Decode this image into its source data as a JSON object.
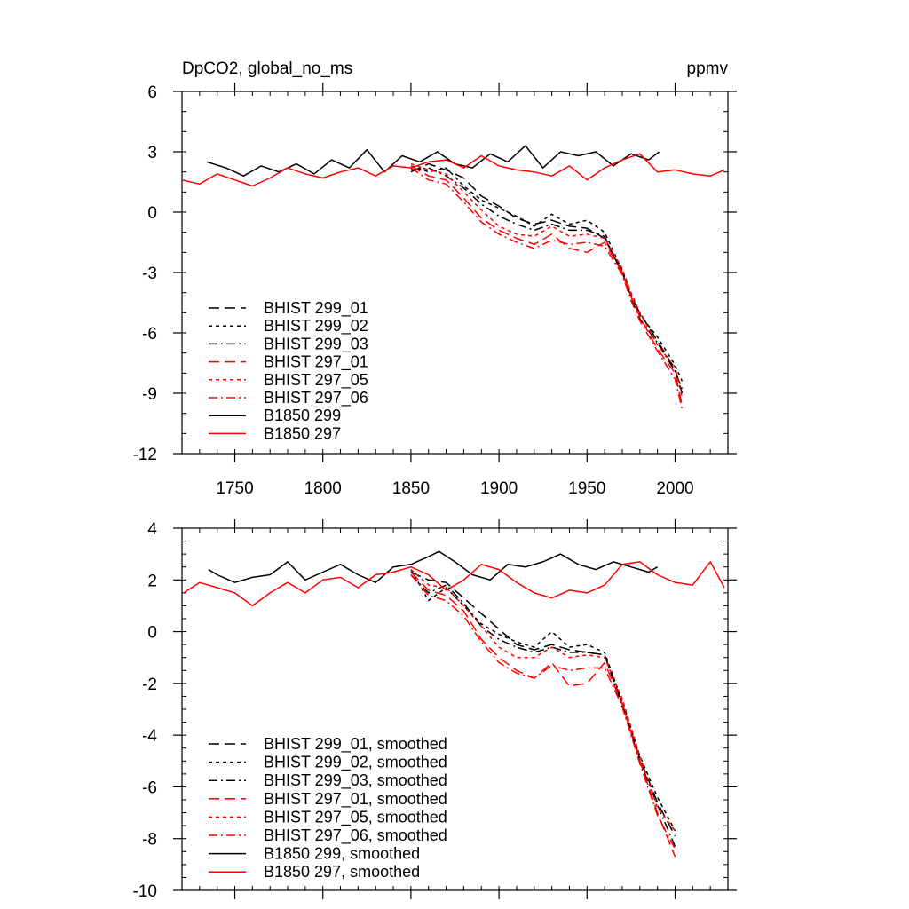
{
  "charts": [
    {
      "id": "top",
      "type": "line",
      "title_left": "DpCO2, global_no_ms",
      "title_right": "ppmv",
      "xlim": [
        1720,
        2030
      ],
      "ylim": [
        -12,
        6
      ],
      "x_ticks": [
        1750,
        1800,
        1850,
        1900,
        1950,
        2000
      ],
      "x_tick_labels": [
        "1750",
        "1800",
        "1850",
        "1900",
        "1950",
        "2000"
      ],
      "y_ticks": [
        6,
        3,
        0,
        -3,
        -6,
        -9,
        -12
      ],
      "y_tick_labels": [
        "6",
        "3",
        "0",
        "-3",
        "-6",
        "-9",
        "-12"
      ],
      "legend": [
        {
          "label": "BHIST 299_01",
          "color": "#000000",
          "dash": "long-dash"
        },
        {
          "label": "BHIST 299_02",
          "color": "#000000",
          "dash": "short-dash"
        },
        {
          "label": "BHIST 299_03",
          "color": "#000000",
          "dash": "dash-dot"
        },
        {
          "label": "BHIST 297_01",
          "color": "#ff0000",
          "dash": "long-dash"
        },
        {
          "label": "BHIST 297_05",
          "color": "#ff0000",
          "dash": "short-dash"
        },
        {
          "label": "BHIST 297_06",
          "color": "#ff0000",
          "dash": "dash-dot"
        },
        {
          "label": "B1850 299",
          "color": "#000000",
          "dash": "solid"
        },
        {
          "label": "B1850 297",
          "color": "#ff0000",
          "dash": "solid"
        }
      ],
      "series": [
        {
          "name": "B1850 299",
          "color": "#000000",
          "dash": "solid",
          "x": [
            1734,
            1745,
            1755,
            1765,
            1775,
            1785,
            1795,
            1805,
            1815,
            1825,
            1835,
            1845,
            1855,
            1865,
            1875,
            1885,
            1895,
            1905,
            1915,
            1925,
            1935,
            1945,
            1955,
            1965,
            1975,
            1985,
            1991
          ],
          "y": [
            2.5,
            2.2,
            1.8,
            2.3,
            2.0,
            2.4,
            1.9,
            2.6,
            2.2,
            3.1,
            2.0,
            2.8,
            2.5,
            3.0,
            2.4,
            2.2,
            2.9,
            2.5,
            3.3,
            2.2,
            3.0,
            2.8,
            3.0,
            2.3,
            2.9,
            2.6,
            3.0
          ]
        },
        {
          "name": "B1850 297",
          "color": "#ff0000",
          "dash": "solid",
          "x": [
            1720,
            1730,
            1740,
            1750,
            1760,
            1770,
            1780,
            1790,
            1800,
            1810,
            1820,
            1830,
            1840,
            1850,
            1860,
            1870,
            1880,
            1890,
            1900,
            1910,
            1920,
            1930,
            1940,
            1950,
            1960,
            1970,
            1980,
            1990,
            2000,
            2010,
            2020,
            2028
          ],
          "y": [
            1.6,
            1.4,
            1.9,
            1.6,
            1.3,
            1.7,
            2.2,
            1.9,
            1.7,
            2.0,
            2.2,
            1.8,
            2.3,
            2.2,
            2.5,
            2.6,
            2.2,
            2.8,
            2.3,
            2.1,
            2.0,
            1.8,
            2.3,
            1.6,
            2.2,
            2.6,
            2.9,
            2.0,
            2.1,
            1.9,
            1.8,
            2.1
          ]
        },
        {
          "name": "BHIST 299_01",
          "color": "#000000",
          "dash": "long-dash",
          "x": [
            1850,
            1860,
            1870,
            1880,
            1890,
            1900,
            1910,
            1920,
            1930,
            1940,
            1950,
            1960,
            1970,
            1975,
            1980,
            1990,
            2000,
            2004
          ],
          "y": [
            2.0,
            2.4,
            2.1,
            1.7,
            0.8,
            0.3,
            -0.3,
            -0.6,
            -0.4,
            -0.7,
            -0.8,
            -1.3,
            -3.0,
            -4.2,
            -5.0,
            -6.4,
            -7.8,
            -9.0
          ]
        },
        {
          "name": "BHIST 299_02",
          "color": "#000000",
          "dash": "short-dash",
          "x": [
            1850,
            1860,
            1870,
            1880,
            1890,
            1900,
            1910,
            1920,
            1930,
            1940,
            1950,
            1960,
            1970,
            1975,
            1980,
            1990,
            2000,
            2004
          ],
          "y": [
            2.3,
            2.0,
            2.2,
            1.3,
            0.6,
            0.2,
            -0.2,
            -0.7,
            -0.1,
            -0.6,
            -0.4,
            -1.0,
            -2.9,
            -4.1,
            -5.1,
            -6.2,
            -7.6,
            -8.4
          ]
        },
        {
          "name": "BHIST 299_03",
          "color": "#000000",
          "dash": "dash-dot",
          "x": [
            1850,
            1860,
            1870,
            1880,
            1890,
            1900,
            1910,
            1920,
            1930,
            1940,
            1950,
            1960,
            1970,
            1975,
            1980,
            1990,
            2000,
            2004
          ],
          "y": [
            2.1,
            2.2,
            1.8,
            1.2,
            0.4,
            -0.2,
            -0.6,
            -0.9,
            -0.6,
            -0.9,
            -0.9,
            -1.2,
            -3.1,
            -4.3,
            -5.3,
            -6.5,
            -7.9,
            -8.8
          ]
        },
        {
          "name": "BHIST 297_01",
          "color": "#ff0000",
          "dash": "long-dash",
          "x": [
            1850,
            1860,
            1870,
            1880,
            1890,
            1900,
            1910,
            1920,
            1930,
            1940,
            1950,
            1960,
            1970,
            1975,
            1980,
            1990,
            2000,
            2004
          ],
          "y": [
            2.3,
            1.8,
            1.6,
            0.7,
            -0.3,
            -0.9,
            -1.3,
            -1.6,
            -1.1,
            -1.8,
            -2.0,
            -1.5,
            -3.0,
            -4.2,
            -5.2,
            -6.8,
            -8.0,
            -9.6
          ]
        },
        {
          "name": "BHIST 297_05",
          "color": "#ff0000",
          "dash": "short-dash",
          "x": [
            1850,
            1860,
            1870,
            1880,
            1890,
            1900,
            1910,
            1920,
            1930,
            1940,
            1950,
            1960,
            1970,
            1975,
            1980,
            1990,
            2000,
            2004
          ],
          "y": [
            2.4,
            2.1,
            1.9,
            1.0,
            0.1,
            -0.7,
            -1.1,
            -1.2,
            -0.7,
            -1.2,
            -1.1,
            -1.3,
            -2.8,
            -4.0,
            -5.0,
            -6.6,
            -7.7,
            -9.2
          ]
        },
        {
          "name": "BHIST 297_06",
          "color": "#ff0000",
          "dash": "dash-dot",
          "x": [
            1850,
            1860,
            1870,
            1880,
            1890,
            1900,
            1910,
            1920,
            1930,
            1940,
            1950,
            1960,
            1970,
            1975,
            1980,
            1990,
            2000,
            2004
          ],
          "y": [
            2.2,
            1.6,
            1.4,
            0.5,
            -0.5,
            -1.1,
            -1.5,
            -1.8,
            -1.4,
            -1.6,
            -1.5,
            -1.7,
            -3.1,
            -4.4,
            -5.4,
            -6.9,
            -8.3,
            -9.8
          ]
        }
      ]
    },
    {
      "id": "bottom",
      "type": "line",
      "title_left": "",
      "title_right": "",
      "xlim": [
        1720,
        2030
      ],
      "ylim": [
        -10,
        4
      ],
      "x_ticks": [
        1750,
        1800,
        1850,
        1900,
        1950,
        2000
      ],
      "x_tick_labels": [],
      "y_ticks": [
        4,
        2,
        0,
        -2,
        -4,
        -6,
        -8,
        -10
      ],
      "y_tick_labels": [
        "4",
        "2",
        "0",
        "-2",
        "-4",
        "-6",
        "-8",
        "-10"
      ],
      "legend": [
        {
          "label": "BHIST 299_01, smoothed",
          "color": "#000000",
          "dash": "long-dash"
        },
        {
          "label": "BHIST 299_02, smoothed",
          "color": "#000000",
          "dash": "short-dash"
        },
        {
          "label": "BHIST 299_03, smoothed",
          "color": "#000000",
          "dash": "dash-dot"
        },
        {
          "label": "BHIST 297_01, smoothed",
          "color": "#ff0000",
          "dash": "long-dash"
        },
        {
          "label": "BHIST 297_05, smoothed",
          "color": "#ff0000",
          "dash": "short-dash"
        },
        {
          "label": "BHIST 297_06, smoothed",
          "color": "#ff0000",
          "dash": "dash-dot"
        },
        {
          "label": "B1850 299, smoothed",
          "color": "#000000",
          "dash": "solid"
        },
        {
          "label": "B1850 297, smoothed",
          "color": "#ff0000",
          "dash": "solid"
        }
      ],
      "series": [
        {
          "name": "B1850 299, smoothed",
          "color": "#000000",
          "dash": "solid",
          "x": [
            1735,
            1740,
            1750,
            1760,
            1770,
            1780,
            1790,
            1800,
            1810,
            1820,
            1830,
            1840,
            1850,
            1860,
            1866,
            1875,
            1885,
            1895,
            1905,
            1915,
            1925,
            1935,
            1945,
            1955,
            1965,
            1975,
            1985,
            1990
          ],
          "y": [
            2.4,
            2.2,
            1.9,
            2.1,
            2.2,
            2.7,
            2.0,
            2.3,
            2.6,
            2.2,
            1.9,
            2.5,
            2.6,
            2.9,
            3.1,
            2.7,
            2.2,
            2.0,
            2.6,
            2.5,
            2.7,
            3.0,
            2.6,
            2.4,
            2.7,
            2.5,
            2.3,
            2.5
          ]
        },
        {
          "name": "B1850 297, smoothed",
          "color": "#ff0000",
          "dash": "solid",
          "x": [
            1721,
            1730,
            1740,
            1750,
            1760,
            1770,
            1780,
            1790,
            1800,
            1810,
            1820,
            1830,
            1840,
            1850,
            1860,
            1870,
            1880,
            1890,
            1900,
            1910,
            1920,
            1930,
            1940,
            1950,
            1960,
            1970,
            1980,
            1990,
            2000,
            2010,
            2020,
            2028
          ],
          "y": [
            1.5,
            1.9,
            1.7,
            1.5,
            1.0,
            1.5,
            1.9,
            1.5,
            2.0,
            2.1,
            1.7,
            2.2,
            2.3,
            2.5,
            2.2,
            1.6,
            2.0,
            2.6,
            2.4,
            1.9,
            1.5,
            1.3,
            1.6,
            1.5,
            1.8,
            2.6,
            2.7,
            2.2,
            1.9,
            1.8,
            2.7,
            1.7
          ]
        },
        {
          "name": "BHIST 299_01, smoothed",
          "color": "#000000",
          "dash": "long-dash",
          "x": [
            1850,
            1860,
            1870,
            1880,
            1890,
            1900,
            1910,
            1920,
            1930,
            1940,
            1950,
            1960,
            1970,
            1980,
            1990,
            2000
          ],
          "y": [
            2.3,
            2.0,
            1.9,
            1.3,
            0.7,
            0.1,
            -0.5,
            -0.7,
            -0.5,
            -0.7,
            -0.8,
            -0.9,
            -2.8,
            -4.9,
            -6.6,
            -7.9
          ]
        },
        {
          "name": "BHIST 299_02, smoothed",
          "color": "#000000",
          "dash": "short-dash",
          "x": [
            1850,
            1860,
            1870,
            1880,
            1890,
            1900,
            1910,
            1920,
            1930,
            1940,
            1950,
            1960,
            1970,
            1980,
            1990,
            2000
          ],
          "y": [
            2.4,
            1.2,
            1.7,
            1.0,
            0.3,
            -0.1,
            -0.4,
            -0.6,
            0.0,
            -0.6,
            -0.5,
            -0.8,
            -2.7,
            -4.8,
            -6.4,
            -7.7
          ]
        },
        {
          "name": "BHIST 299_03, smoothed",
          "color": "#000000",
          "dash": "dash-dot",
          "x": [
            1850,
            1860,
            1870,
            1880,
            1890,
            1900,
            1910,
            1920,
            1930,
            1940,
            1950,
            1960,
            1970,
            1980,
            1990,
            2000
          ],
          "y": [
            2.2,
            1.5,
            1.8,
            1.1,
            0.2,
            -0.3,
            -0.6,
            -0.8,
            -0.6,
            -0.8,
            -0.8,
            -0.9,
            -2.9,
            -5.0,
            -6.7,
            -8.3
          ]
        },
        {
          "name": "BHIST 297_01, smoothed",
          "color": "#ff0000",
          "dash": "long-dash",
          "x": [
            1850,
            1860,
            1870,
            1880,
            1890,
            1900,
            1910,
            1920,
            1930,
            1940,
            1950,
            1960,
            1970,
            1980,
            1990,
            2000
          ],
          "y": [
            2.3,
            1.6,
            1.4,
            0.8,
            -0.3,
            -1.0,
            -1.5,
            -1.8,
            -1.2,
            -2.1,
            -2.0,
            -1.2,
            -2.8,
            -5.0,
            -7.0,
            -8.7
          ]
        },
        {
          "name": "BHIST 297_05, smoothed",
          "color": "#ff0000",
          "dash": "short-dash",
          "x": [
            1850,
            1860,
            1870,
            1880,
            1890,
            1900,
            1910,
            1920,
            1930,
            1940,
            1950,
            1960,
            1970,
            1980,
            1990,
            2000
          ],
          "y": [
            2.4,
            1.8,
            1.7,
            1.0,
            0.2,
            -0.6,
            -1.0,
            -1.0,
            -0.6,
            -1.0,
            -0.9,
            -1.0,
            -2.6,
            -4.8,
            -6.8,
            -7.7
          ]
        },
        {
          "name": "BHIST 297_06, smoothed",
          "color": "#ff0000",
          "dash": "dash-dot",
          "x": [
            1850,
            1860,
            1870,
            1880,
            1890,
            1900,
            1910,
            1920,
            1930,
            1940,
            1950,
            1960,
            1970,
            1980,
            1990,
            2000
          ],
          "y": [
            2.2,
            1.4,
            1.2,
            0.6,
            -0.4,
            -1.2,
            -1.6,
            -1.8,
            -1.3,
            -1.5,
            -1.4,
            -1.4,
            -2.9,
            -5.1,
            -7.1,
            -8.4
          ]
        }
      ]
    }
  ]
}
